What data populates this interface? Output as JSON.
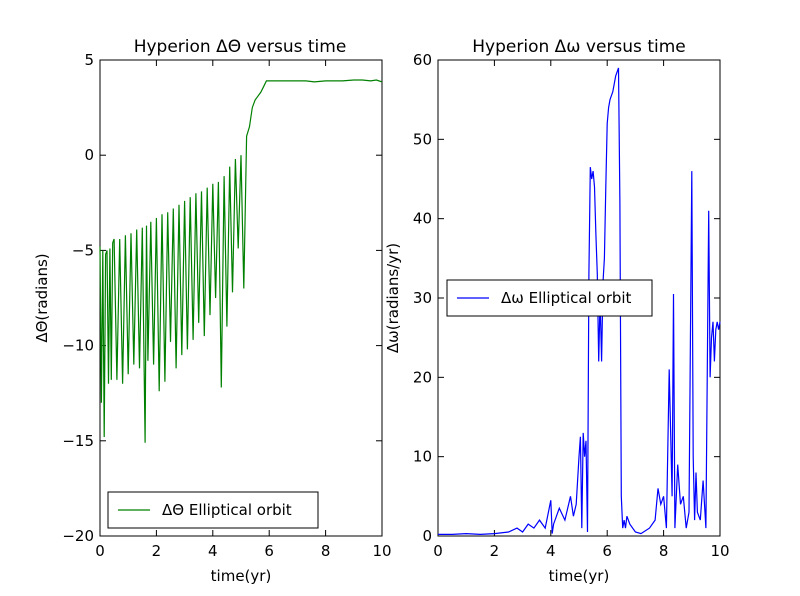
{
  "chart_data": [
    {
      "type": "line",
      "title": "Hyperion  ΔΘ versus time",
      "xlabel": "time(yr)",
      "ylabel": "ΔΘ(radians)",
      "xlim": [
        0,
        10
      ],
      "ylim": [
        -20,
        5
      ],
      "xticks": [
        0,
        2,
        4,
        6,
        8,
        10
      ],
      "yticks": [
        -20,
        -15,
        -10,
        -5,
        0,
        5
      ],
      "grid": false,
      "legend_position": "lower-center",
      "color": "#008000",
      "series": [
        {
          "name": "ΔΘ Elliptical orbit",
          "x": [
            0.0,
            0.05,
            0.1,
            0.15,
            0.2,
            0.25,
            0.3,
            0.35,
            0.4,
            0.45,
            0.5,
            0.6,
            0.7,
            0.8,
            0.9,
            1.0,
            1.1,
            1.2,
            1.3,
            1.4,
            1.5,
            1.6,
            1.65,
            1.7,
            1.8,
            1.9,
            2.0,
            2.1,
            2.2,
            2.3,
            2.4,
            2.5,
            2.6,
            2.7,
            2.8,
            2.9,
            3.0,
            3.1,
            3.2,
            3.3,
            3.4,
            3.5,
            3.6,
            3.7,
            3.8,
            3.9,
            4.0,
            4.1,
            4.2,
            4.3,
            4.4,
            4.5,
            4.6,
            4.7,
            4.8,
            4.9,
            5.0,
            5.1,
            5.2,
            5.3,
            5.35,
            5.4,
            5.5,
            5.6,
            5.7,
            5.8,
            5.9,
            6.0,
            6.1,
            6.2,
            6.3,
            6.4,
            6.5,
            6.6,
            6.8,
            7.0,
            7.3,
            7.6,
            8.0,
            8.3,
            8.6,
            9.0,
            9.3,
            9.6,
            9.8,
            10.0
          ],
          "y": [
            -4.8,
            -13.0,
            -5.0,
            -14.8,
            -5.2,
            -5.0,
            -12.0,
            -4.9,
            -11.8,
            -4.6,
            -4.4,
            -11.8,
            -4.4,
            -12.0,
            -4.2,
            -11.5,
            -4.1,
            -11.0,
            -3.9,
            -11.2,
            -3.8,
            -15.1,
            -3.7,
            -10.8,
            -3.5,
            -11.0,
            -3.3,
            -12.4,
            -3.1,
            -11.9,
            -3.0,
            -9.8,
            -2.8,
            -11.2,
            -2.6,
            -10.5,
            -2.4,
            -10.2,
            -2.2,
            -9.7,
            -2.0,
            -8.8,
            -1.9,
            -9.5,
            -1.7,
            -8.4,
            -1.5,
            -7.5,
            -1.4,
            -12.2,
            -1.1,
            -9.0,
            -0.6,
            -7.2,
            -0.2,
            -4.9,
            0.0,
            -7.0,
            1.0,
            1.5,
            2.0,
            2.5,
            2.9,
            3.1,
            3.3,
            3.6,
            3.9,
            3.9,
            3.9,
            3.9,
            3.9,
            3.9,
            3.9,
            3.9,
            3.9,
            3.9,
            3.9,
            3.85,
            3.9,
            3.9,
            3.9,
            3.95,
            3.95,
            3.9,
            3.95,
            3.85
          ]
        }
      ]
    },
    {
      "type": "line",
      "title": "Hyperion  Δω versus time",
      "xlabel": "time(yr)",
      "ylabel": "Δω(radians/yr)",
      "xlim": [
        0,
        10
      ],
      "ylim": [
        0,
        60
      ],
      "xticks": [
        0,
        2,
        4,
        6,
        8,
        10
      ],
      "yticks": [
        0,
        10,
        20,
        30,
        40,
        50,
        60
      ],
      "grid": false,
      "legend_position": "center-left",
      "color": "#0000ff",
      "series": [
        {
          "name": "Δω Elliptical orbit",
          "x": [
            0.0,
            0.5,
            1.0,
            1.5,
            2.0,
            2.5,
            2.8,
            3.0,
            3.2,
            3.4,
            3.6,
            3.8,
            4.0,
            4.05,
            4.1,
            4.3,
            4.5,
            4.7,
            4.8,
            4.9,
            5.0,
            5.05,
            5.1,
            5.15,
            5.2,
            5.25,
            5.3,
            5.35,
            5.4,
            5.45,
            5.5,
            5.55,
            5.6,
            5.65,
            5.7,
            5.75,
            5.8,
            5.85,
            5.9,
            5.95,
            6.0,
            6.05,
            6.1,
            6.2,
            6.3,
            6.4,
            6.45,
            6.5,
            6.55,
            6.6,
            6.65,
            6.7,
            6.8,
            7.0,
            7.2,
            7.5,
            7.7,
            7.8,
            7.9,
            8.0,
            8.1,
            8.2,
            8.3,
            8.35,
            8.4,
            8.5,
            8.6,
            8.7,
            8.8,
            8.9,
            9.0,
            9.05,
            9.1,
            9.15,
            9.2,
            9.3,
            9.4,
            9.5,
            9.6,
            9.65,
            9.7,
            9.75,
            9.8,
            9.85,
            9.9,
            9.95,
            10.0
          ],
          "y": [
            0.2,
            0.2,
            0.3,
            0.2,
            0.3,
            0.5,
            1.0,
            0.5,
            1.5,
            1.0,
            2.0,
            1.0,
            4.5,
            0.3,
            1.5,
            3.5,
            2.0,
            5.0,
            2.5,
            4.0,
            10.0,
            12.5,
            1.0,
            13.0,
            10.0,
            12.0,
            0.5,
            33.0,
            46.5,
            45.0,
            46.0,
            44.0,
            38.0,
            33.0,
            22.0,
            30.0,
            22.0,
            32.0,
            35.0,
            44.0,
            52.0,
            54.0,
            55.0,
            56.0,
            58.0,
            59.0,
            42.0,
            5.0,
            1.0,
            2.0,
            1.0,
            2.5,
            1.5,
            0.5,
            0.3,
            1.0,
            2.0,
            6.0,
            4.0,
            5.0,
            1.0,
            21.0,
            5.0,
            30.5,
            1.0,
            9.0,
            4.0,
            5.0,
            1.0,
            3.0,
            46.0,
            10.0,
            2.0,
            8.0,
            3.0,
            2.0,
            7.0,
            1.0,
            41.0,
            20.0,
            25.0,
            27.0,
            22.0,
            26.0,
            27.0,
            26.0,
            27.0
          ]
        }
      ]
    }
  ]
}
